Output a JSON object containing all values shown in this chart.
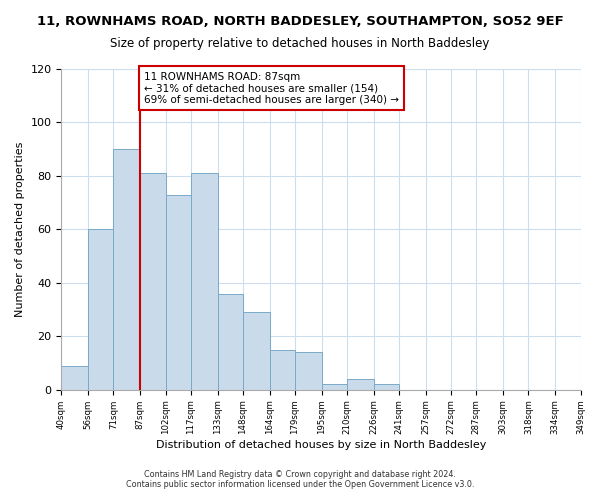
{
  "title": "11, ROWNHAMS ROAD, NORTH BADDESLEY, SOUTHAMPTON, SO52 9EF",
  "subtitle": "Size of property relative to detached houses in North Baddesley",
  "xlabel": "Distribution of detached houses by size in North Baddesley",
  "ylabel": "Number of detached properties",
  "bin_edges": [
    40,
    56,
    71,
    87,
    102,
    117,
    133,
    148,
    164,
    179,
    195,
    210,
    226,
    241,
    257,
    272,
    287,
    303,
    318,
    334,
    349
  ],
  "bar_heights": [
    9,
    60,
    90,
    81,
    73,
    81,
    36,
    29,
    15,
    14,
    2,
    4,
    2,
    0,
    0,
    0,
    0,
    0,
    0,
    0
  ],
  "bar_color": "#c9daea",
  "bar_edge_color": "#7aaac8",
  "property_value": 87,
  "vline_color": "#cc0000",
  "annotation_text": "11 ROWNHAMS ROAD: 87sqm\n← 31% of detached houses are smaller (154)\n69% of semi-detached houses are larger (340) →",
  "annotation_box_color": "#ffffff",
  "annotation_box_edge_color": "#cc0000",
  "ylim": [
    0,
    120
  ],
  "yticks": [
    0,
    20,
    40,
    60,
    80,
    100,
    120
  ],
  "footer_line1": "Contains HM Land Registry data © Crown copyright and database right 2024.",
  "footer_line2": "Contains public sector information licensed under the Open Government Licence v3.0.",
  "background_color": "#ffffff",
  "grid_color": "#ccddee"
}
